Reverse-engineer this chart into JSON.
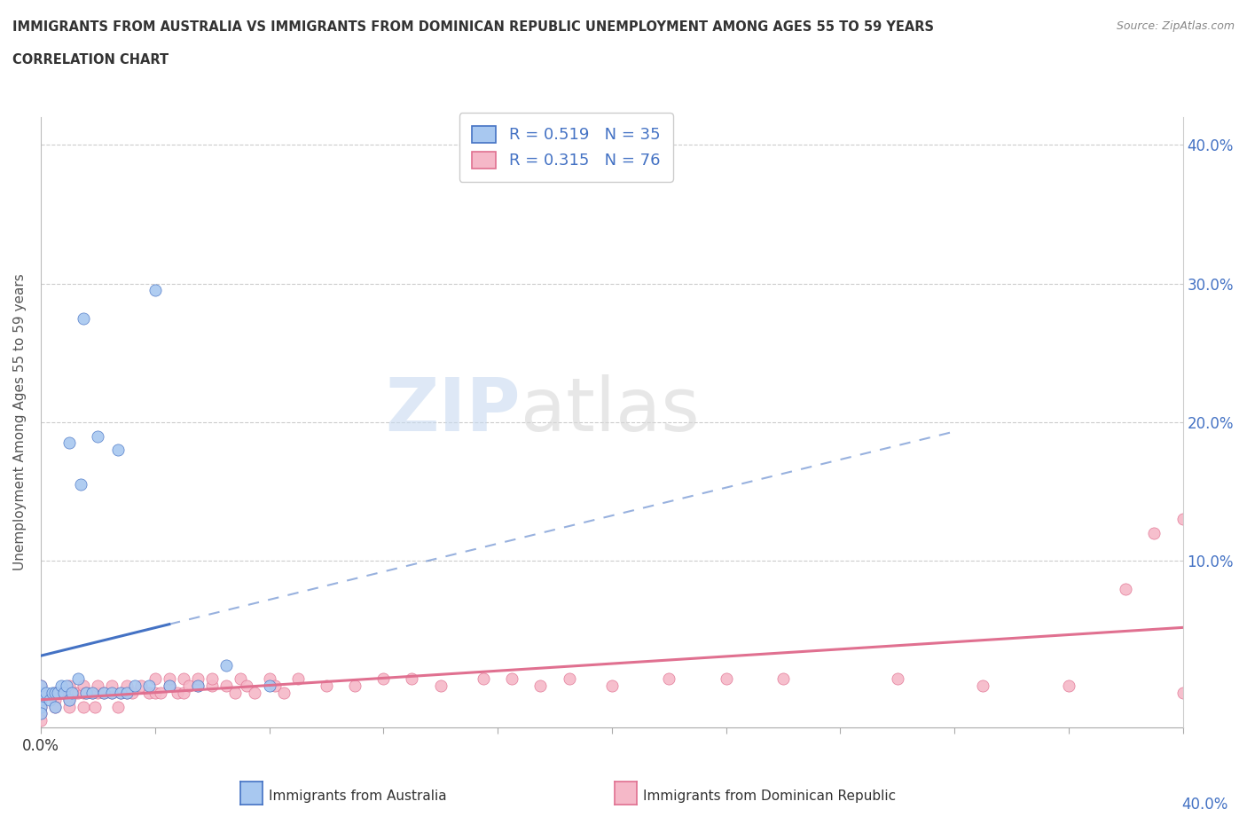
{
  "title_line1": "IMMIGRANTS FROM AUSTRALIA VS IMMIGRANTS FROM DOMINICAN REPUBLIC UNEMPLOYMENT AMONG AGES 55 TO 59 YEARS",
  "title_line2": "CORRELATION CHART",
  "source_text": "Source: ZipAtlas.com",
  "ylabel": "Unemployment Among Ages 55 to 59 years",
  "xlim": [
    0.0,
    0.4
  ],
  "ylim": [
    -0.02,
    0.42
  ],
  "ytick_vals": [
    0.0,
    0.1,
    0.2,
    0.3,
    0.4
  ],
  "xtick_vals": [
    0.0,
    0.04,
    0.08,
    0.12,
    0.16,
    0.2,
    0.24,
    0.28,
    0.32,
    0.36,
    0.4
  ],
  "australia_color": "#a8c8f0",
  "australia_edge_color": "#4472c4",
  "australia_line_color": "#4472c4",
  "dr_color": "#f5b8c8",
  "dr_edge_color": "#e07090",
  "dr_line_color": "#e07090",
  "tick_label_color": "#4472c4",
  "r_australia": 0.519,
  "n_australia": 35,
  "r_dr": 0.315,
  "n_dr": 76,
  "watermark_zip": "ZIP",
  "watermark_atlas": "atlas",
  "legend_australia": "Immigrants from Australia",
  "legend_dr": "Immigrants from Dominican Republic",
  "aus_x": [
    0.0,
    0.0,
    0.0,
    0.0,
    0.0,
    0.002,
    0.003,
    0.004,
    0.005,
    0.005,
    0.006,
    0.007,
    0.008,
    0.009,
    0.01,
    0.01,
    0.011,
    0.013,
    0.014,
    0.015,
    0.016,
    0.018,
    0.02,
    0.022,
    0.025,
    0.027,
    0.028,
    0.03,
    0.033,
    0.038,
    0.04,
    0.045,
    0.055,
    0.065,
    0.08
  ],
  "aus_y": [
    0.0,
    0.005,
    -0.005,
    -0.01,
    0.01,
    0.005,
    0.0,
    0.005,
    0.005,
    -0.005,
    0.005,
    0.01,
    0.005,
    0.01,
    0.0,
    0.185,
    0.005,
    0.015,
    0.155,
    0.275,
    0.005,
    0.005,
    0.19,
    0.005,
    0.005,
    0.18,
    0.005,
    0.005,
    0.01,
    0.01,
    0.295,
    0.01,
    0.01,
    0.025,
    0.01
  ],
  "dr_x": [
    0.0,
    0.0,
    0.0,
    0.0,
    0.0,
    0.0,
    0.005,
    0.005,
    0.005,
    0.007,
    0.01,
    0.01,
    0.01,
    0.01,
    0.012,
    0.013,
    0.015,
    0.015,
    0.015,
    0.016,
    0.018,
    0.019,
    0.02,
    0.02,
    0.022,
    0.025,
    0.025,
    0.027,
    0.028,
    0.03,
    0.03,
    0.032,
    0.035,
    0.038,
    0.04,
    0.04,
    0.042,
    0.045,
    0.045,
    0.048,
    0.05,
    0.05,
    0.052,
    0.055,
    0.055,
    0.06,
    0.06,
    0.065,
    0.068,
    0.07,
    0.072,
    0.075,
    0.08,
    0.082,
    0.085,
    0.09,
    0.1,
    0.11,
    0.12,
    0.13,
    0.14,
    0.155,
    0.165,
    0.175,
    0.185,
    0.2,
    0.22,
    0.24,
    0.26,
    0.3,
    0.33,
    0.36,
    0.38,
    0.39,
    0.4,
    0.4
  ],
  "dr_y": [
    0.0,
    0.005,
    -0.005,
    -0.01,
    0.01,
    -0.015,
    0.0,
    0.005,
    -0.005,
    0.005,
    0.0,
    0.005,
    0.01,
    -0.005,
    0.005,
    0.005,
    0.005,
    -0.005,
    0.01,
    0.005,
    0.005,
    -0.005,
    0.005,
    0.01,
    0.005,
    0.005,
    0.01,
    -0.005,
    0.005,
    0.005,
    0.01,
    0.005,
    0.01,
    0.005,
    0.005,
    0.015,
    0.005,
    0.01,
    0.015,
    0.005,
    0.005,
    0.015,
    0.01,
    0.01,
    0.015,
    0.01,
    0.015,
    0.01,
    0.005,
    0.015,
    0.01,
    0.005,
    0.015,
    0.01,
    0.005,
    0.015,
    0.01,
    0.01,
    0.015,
    0.015,
    0.01,
    0.015,
    0.015,
    0.01,
    0.015,
    0.01,
    0.015,
    0.015,
    0.015,
    0.015,
    0.01,
    0.01,
    0.08,
    0.12,
    0.005,
    0.13
  ]
}
